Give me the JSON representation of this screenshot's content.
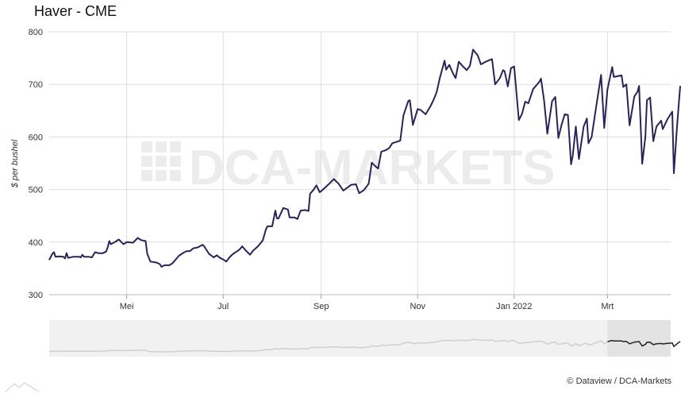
{
  "title": "Haver - CME",
  "credit": "© Dataview / DCA-Markets",
  "watermark": "DCA-MARKETS",
  "colors": {
    "line": "#2c2158",
    "grid": "#dddddd",
    "navigator_bg": "#f1f1f1",
    "navigator_mask": "#e3e3e3",
    "navigator_line": "#cfcfcf",
    "navigator_line_active": "#222222"
  },
  "chart_data": {
    "type": "line",
    "title": "Haver - CME",
    "ylabel": "$ per bushel",
    "xlabel": "",
    "ylim": [
      300,
      800
    ],
    "yticks": [
      300,
      400,
      500,
      600,
      700,
      800
    ],
    "xlim": [
      "2021-03-13",
      "2022-04-10"
    ],
    "xticks": [
      {
        "date": "2021-05-01",
        "label": "Mei"
      },
      {
        "date": "2021-07-01",
        "label": "Jul"
      },
      {
        "date": "2021-09-01",
        "label": "Sep"
      },
      {
        "date": "2021-11-01",
        "label": "Nov"
      },
      {
        "date": "2022-01-01",
        "label": "Jan 2022"
      },
      {
        "date": "2022-03-01",
        "label": "Mrt"
      }
    ],
    "grid": true,
    "series": [
      {
        "points": [
          [
            "2021-03-13",
            366
          ],
          [
            "2021-03-15",
            378
          ],
          [
            "2021-03-16",
            381
          ],
          [
            "2021-03-17",
            372
          ],
          [
            "2021-03-19",
            373
          ],
          [
            "2021-03-22",
            372
          ],
          [
            "2021-03-23",
            369
          ],
          [
            "2021-03-24",
            379
          ],
          [
            "2021-03-25",
            370
          ],
          [
            "2021-03-28",
            372
          ],
          [
            "2021-04-01",
            372
          ],
          [
            "2021-04-02",
            371
          ],
          [
            "2021-04-03",
            376
          ],
          [
            "2021-04-04",
            372
          ],
          [
            "2021-04-07",
            372
          ],
          [
            "2021-04-09",
            371
          ],
          [
            "2021-04-11",
            381
          ],
          [
            "2021-04-13",
            379
          ],
          [
            "2021-04-16",
            379
          ],
          [
            "2021-04-18",
            382
          ],
          [
            "2021-04-19",
            390
          ],
          [
            "2021-04-20",
            402
          ],
          [
            "2021-04-21",
            396
          ],
          [
            "2021-04-24",
            401
          ],
          [
            "2021-04-26",
            405
          ],
          [
            "2021-04-29",
            396
          ],
          [
            "2021-05-01",
            400
          ],
          [
            "2021-05-05",
            399
          ],
          [
            "2021-05-08",
            408
          ],
          [
            "2021-05-10",
            404
          ],
          [
            "2021-05-13",
            402
          ],
          [
            "2021-05-14",
            378
          ],
          [
            "2021-05-16",
            363
          ],
          [
            "2021-05-20",
            361
          ],
          [
            "2021-05-22",
            358
          ],
          [
            "2021-05-23",
            353
          ],
          [
            "2021-05-25",
            356
          ],
          [
            "2021-05-28",
            356
          ],
          [
            "2021-05-30",
            360
          ],
          [
            "2021-06-03",
            374
          ],
          [
            "2021-06-06",
            380
          ],
          [
            "2021-06-08",
            383
          ],
          [
            "2021-06-10",
            383
          ],
          [
            "2021-06-12",
            388
          ],
          [
            "2021-06-15",
            390
          ],
          [
            "2021-06-18",
            395
          ],
          [
            "2021-06-19",
            392
          ],
          [
            "2021-06-22",
            378
          ],
          [
            "2021-06-25",
            371
          ],
          [
            "2021-06-27",
            375
          ],
          [
            "2021-06-29",
            370
          ],
          [
            "2021-07-01",
            367
          ],
          [
            "2021-07-03",
            363
          ],
          [
            "2021-07-05",
            371
          ],
          [
            "2021-07-07",
            377
          ],
          [
            "2021-07-11",
            385
          ],
          [
            "2021-07-12",
            388
          ],
          [
            "2021-07-13",
            392
          ],
          [
            "2021-07-15",
            385
          ],
          [
            "2021-07-18",
            376
          ],
          [
            "2021-07-20",
            384
          ],
          [
            "2021-07-23",
            392
          ],
          [
            "2021-07-26",
            403
          ],
          [
            "2021-07-28",
            424
          ],
          [
            "2021-07-29",
            430
          ],
          [
            "2021-08-01",
            430
          ],
          [
            "2021-08-03",
            460
          ],
          [
            "2021-08-04",
            445
          ],
          [
            "2021-08-05",
            445
          ],
          [
            "2021-08-08",
            465
          ],
          [
            "2021-08-11",
            462
          ],
          [
            "2021-08-12",
            447
          ],
          [
            "2021-08-15",
            447
          ],
          [
            "2021-08-17",
            444
          ],
          [
            "2021-08-19",
            460
          ],
          [
            "2021-08-22",
            461
          ],
          [
            "2021-08-24",
            459
          ],
          [
            "2021-08-25",
            492
          ],
          [
            "2021-08-27",
            499
          ],
          [
            "2021-08-29",
            508
          ],
          [
            "2021-08-31",
            495
          ],
          [
            "2021-09-01",
            497
          ],
          [
            "2021-09-05",
            508
          ],
          [
            "2021-09-09",
            520
          ],
          [
            "2021-09-12",
            511
          ],
          [
            "2021-09-15",
            498
          ],
          [
            "2021-09-20",
            509
          ],
          [
            "2021-09-23",
            510
          ],
          [
            "2021-09-25",
            493
          ],
          [
            "2021-09-28",
            499
          ],
          [
            "2021-10-01",
            511
          ],
          [
            "2021-10-03",
            551
          ],
          [
            "2021-10-05",
            545
          ],
          [
            "2021-10-07",
            540
          ],
          [
            "2021-10-09",
            572
          ],
          [
            "2021-10-12",
            575
          ],
          [
            "2021-10-14",
            579
          ],
          [
            "2021-10-16",
            588
          ],
          [
            "2021-10-19",
            591
          ],
          [
            "2021-10-21",
            593
          ],
          [
            "2021-10-23",
            641
          ],
          [
            "2021-10-26",
            668
          ],
          [
            "2021-10-27",
            670
          ],
          [
            "2021-10-29",
            623
          ],
          [
            "2021-11-01",
            653
          ],
          [
            "2021-11-03",
            651
          ],
          [
            "2021-11-06",
            643
          ],
          [
            "2021-11-09",
            658
          ],
          [
            "2021-11-11",
            670
          ],
          [
            "2021-11-13",
            685
          ],
          [
            "2021-11-15",
            712
          ],
          [
            "2021-11-18",
            745
          ],
          [
            "2021-11-19",
            728
          ],
          [
            "2021-11-21",
            737
          ],
          [
            "2021-11-23",
            723
          ],
          [
            "2021-11-25",
            712
          ],
          [
            "2021-11-27",
            743
          ],
          [
            "2021-11-30",
            733
          ],
          [
            "2021-12-02",
            727
          ],
          [
            "2021-12-04",
            735
          ],
          [
            "2021-12-06",
            766
          ],
          [
            "2021-12-09",
            755
          ],
          [
            "2021-12-11",
            738
          ],
          [
            "2021-12-14",
            743
          ],
          [
            "2021-12-18",
            748
          ],
          [
            "2021-12-20",
            700
          ],
          [
            "2021-12-23",
            712
          ],
          [
            "2021-12-25",
            727
          ],
          [
            "2021-12-26",
            725
          ],
          [
            "2021-12-28",
            696
          ],
          [
            "2021-12-30",
            731
          ],
          [
            "2022-01-01",
            734
          ],
          [
            "2022-01-04",
            632
          ],
          [
            "2022-01-06",
            644
          ],
          [
            "2022-01-08",
            667
          ],
          [
            "2022-01-10",
            664
          ],
          [
            "2022-01-13",
            691
          ],
          [
            "2022-01-17",
            705
          ],
          [
            "2022-01-18",
            711
          ],
          [
            "2022-01-20",
            668
          ],
          [
            "2022-01-22",
            606
          ],
          [
            "2022-01-25",
            668
          ],
          [
            "2022-01-27",
            676
          ],
          [
            "2022-01-29",
            598
          ],
          [
            "2022-01-31",
            623
          ],
          [
            "2022-02-02",
            643
          ],
          [
            "2022-02-04",
            642
          ],
          [
            "2022-02-06",
            548
          ],
          [
            "2022-02-07",
            563
          ],
          [
            "2022-02-09",
            620
          ],
          [
            "2022-02-11",
            558
          ],
          [
            "2022-02-14",
            620
          ],
          [
            "2022-02-16",
            635
          ],
          [
            "2022-02-17",
            588
          ],
          [
            "2022-02-19",
            600
          ],
          [
            "2022-02-22",
            660
          ],
          [
            "2022-02-25",
            718
          ],
          [
            "2022-02-27",
            617
          ],
          [
            "2022-03-01",
            690
          ],
          [
            "2022-03-04",
            733
          ],
          [
            "2022-03-05",
            714
          ],
          [
            "2022-03-08",
            716
          ],
          [
            "2022-03-10",
            717
          ],
          [
            "2022-03-11",
            695
          ],
          [
            "2022-03-13",
            700
          ],
          [
            "2022-03-15",
            622
          ],
          [
            "2022-03-18",
            677
          ],
          [
            "2022-03-20",
            686
          ],
          [
            "2022-03-21",
            697
          ],
          [
            "2022-03-23",
            549
          ],
          [
            "2022-03-25",
            600
          ],
          [
            "2022-03-26",
            670
          ],
          [
            "2022-03-28",
            675
          ],
          [
            "2022-03-30",
            592
          ],
          [
            "2022-04-01",
            620
          ],
          [
            "2022-04-04",
            631
          ],
          [
            "2022-04-05",
            615
          ],
          [
            "2022-04-08",
            634
          ],
          [
            "2022-04-11",
            648
          ],
          [
            "2022-04-12",
            531
          ],
          [
            "2022-04-14",
            620
          ],
          [
            "2022-04-16",
            697
          ]
        ]
      }
    ]
  },
  "navigator": {
    "selection_start": "2022-03-01"
  }
}
